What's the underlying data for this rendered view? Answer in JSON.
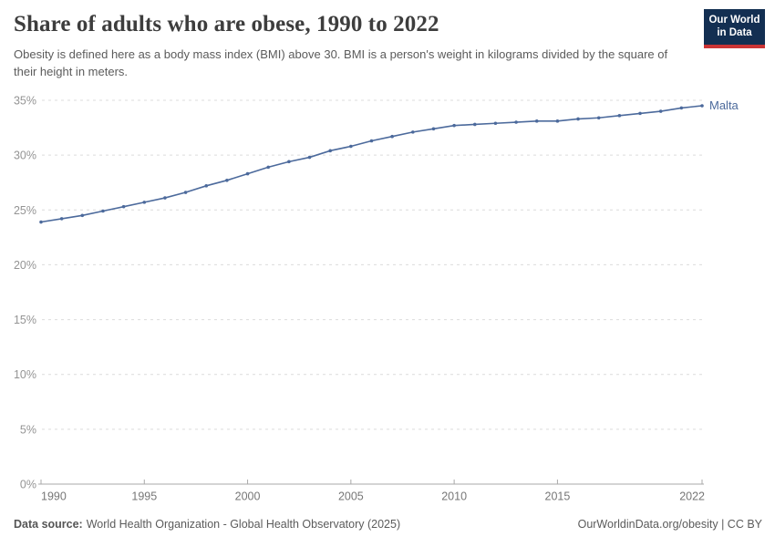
{
  "header": {
    "title": "Share of adults who are obese, 1990 to 2022",
    "subtitle": "Obesity is defined here as a body mass index (BMI) above 30. BMI is a person's weight in kilograms divided by the square of their height in meters."
  },
  "logo": {
    "line1": "Our World",
    "line2": "in Data",
    "bg_color": "#132f52",
    "accent_color": "#CB3435"
  },
  "chart_data": {
    "type": "line",
    "title": "Share of adults who are obese, 1990 to 2022",
    "xlabel": "",
    "ylabel": "",
    "x": [
      1990,
      1991,
      1992,
      1993,
      1994,
      1995,
      1996,
      1997,
      1998,
      1999,
      2000,
      2001,
      2002,
      2003,
      2004,
      2005,
      2006,
      2007,
      2008,
      2009,
      2010,
      2011,
      2012,
      2013,
      2014,
      2015,
      2016,
      2017,
      2018,
      2019,
      2020,
      2021,
      2022
    ],
    "series": [
      {
        "name": "Malta",
        "color": "#4C6A9C",
        "values": [
          23.9,
          24.2,
          24.5,
          24.9,
          25.3,
          25.7,
          26.1,
          26.6,
          27.2,
          27.7,
          28.3,
          28.9,
          29.4,
          29.8,
          30.4,
          30.8,
          31.3,
          31.7,
          32.1,
          32.4,
          32.7,
          32.8,
          32.9,
          33.0,
          33.1,
          33.1,
          33.3,
          33.4,
          33.6,
          33.8,
          34.0,
          34.3,
          34.5
        ]
      }
    ],
    "ylim": [
      0,
      35
    ],
    "yticks": [
      0,
      5,
      10,
      15,
      20,
      25,
      30,
      35
    ],
    "ytick_suffix": "%",
    "xticks": [
      1990,
      1995,
      2000,
      2005,
      2010,
      2015,
      2022
    ],
    "grid": "horizontal-dashed",
    "legend_position": "end-of-line",
    "end_label": "Malta"
  },
  "footer": {
    "data_source_label": "Data source:",
    "data_source_text": "World Health Organization - Global Health Observatory (2025)",
    "right_text": "OurWorldinData.org/obesity | CC BY"
  }
}
